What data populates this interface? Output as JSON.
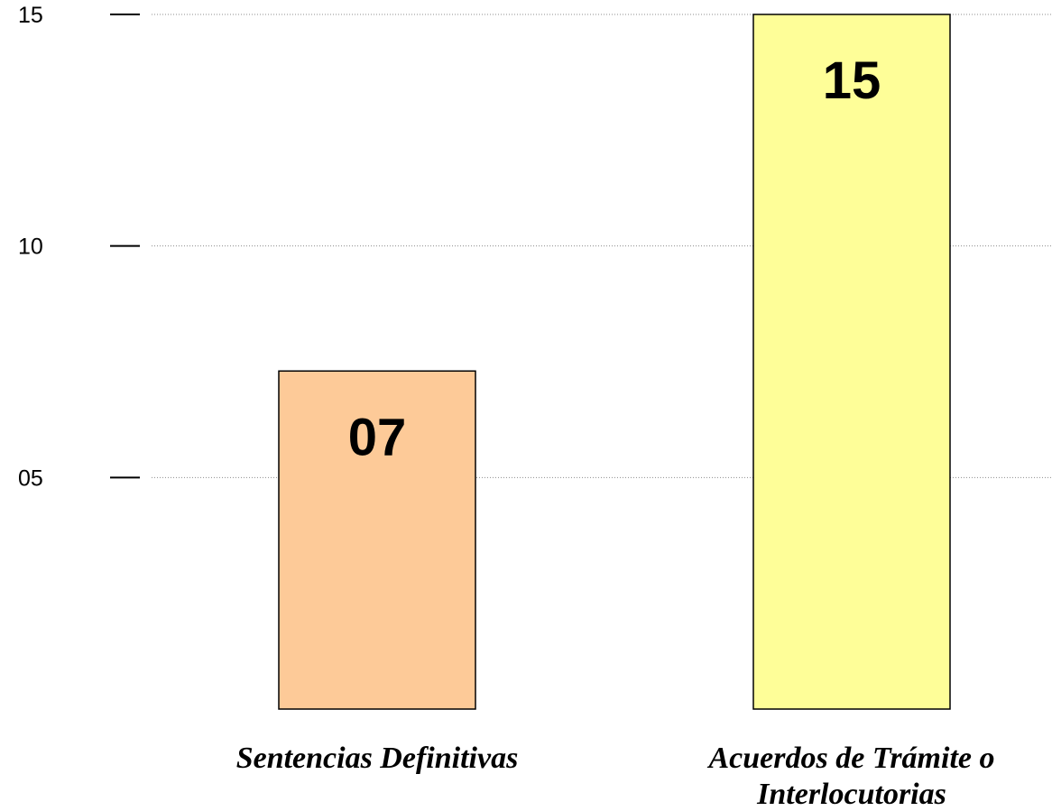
{
  "chart_data": {
    "type": "bar",
    "categories": [
      "Sentencias Definitivas",
      "Acuerdos de Trámite o Interlocutorias"
    ],
    "category_label_lines": [
      [
        "Sentencias Definitivas"
      ],
      [
        "Acuerdos de Trámite o",
        "Interlocutorias"
      ]
    ],
    "values": [
      7.3,
      15
    ],
    "data_labels": [
      "07",
      "15"
    ],
    "bar_colors": [
      "#fdca98",
      "#fefe98"
    ],
    "yticks": [
      {
        "value": 5,
        "label": "05"
      },
      {
        "value": 10,
        "label": "10"
      },
      {
        "value": 15,
        "label": "15"
      }
    ],
    "ylim": [
      0,
      15
    ],
    "grid": true,
    "grid_style": "dotted",
    "title": "",
    "xlabel": "",
    "ylabel": ""
  }
}
